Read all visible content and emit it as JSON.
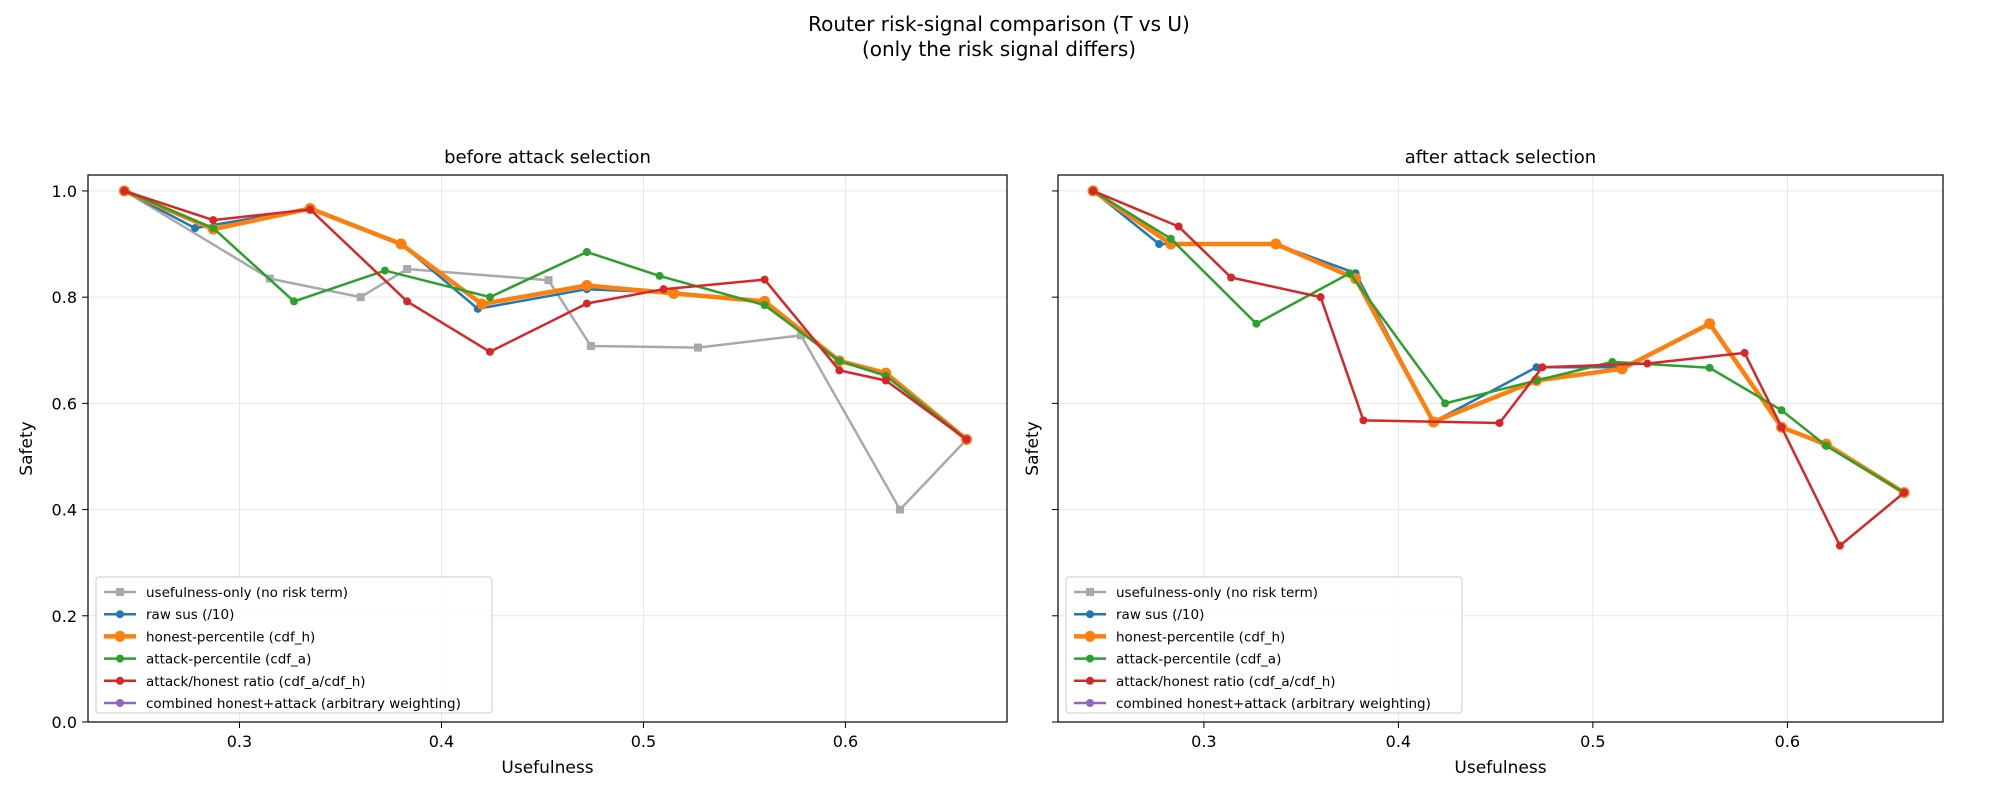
{
  "figure": {
    "title_line1": "Router risk-signal comparison (T vs U)",
    "title_line2": "(only the risk signal differs)"
  },
  "colors": {
    "usefulness_only": "#a9a9a9",
    "raw_sus": "#1f77b4",
    "honest_percentile": "#ff7f0e",
    "attack_percentile": "#2ca02c",
    "attack_honest_ratio": "#d62728",
    "combined": "#9467bd",
    "grid": "#e6e6e6"
  },
  "chart_data": [
    {
      "type": "line",
      "title": "before attack selection",
      "xlabel": "Usefulness",
      "ylabel": "Safety",
      "xlim": [
        0.225,
        0.68
      ],
      "ylim": [
        0.0,
        1.03
      ],
      "xticks": [
        "0.3",
        "0.4",
        "0.5",
        "0.6"
      ],
      "xtick_values": [
        0.3,
        0.4,
        0.5,
        0.6
      ],
      "yticks": [
        "0.0",
        "0.2",
        "0.4",
        "0.6",
        "0.8",
        "1.0"
      ],
      "ytick_values": [
        0.0,
        0.2,
        0.4,
        0.6,
        0.8,
        1.0
      ],
      "grid": true,
      "legend": "lower-left",
      "series": [
        {
          "name": "usefulness-only (no risk term)",
          "key": "usefulness_only",
          "marker": "square",
          "x": [
            0.243,
            0.315,
            0.36,
            0.383,
            0.453,
            0.474,
            0.527,
            0.578,
            0.627,
            0.66
          ],
          "y": [
            1.0,
            0.835,
            0.8,
            0.853,
            0.832,
            0.708,
            0.705,
            0.728,
            0.4,
            0.532
          ]
        },
        {
          "name": "raw sus (/10)",
          "key": "raw_sus",
          "marker": "circle",
          "x": [
            0.243,
            0.278,
            0.335,
            0.38,
            0.418,
            0.472,
            0.515,
            0.56,
            0.597,
            0.62,
            0.66
          ],
          "y": [
            1.0,
            0.93,
            0.967,
            0.9,
            0.778,
            0.815,
            0.808,
            0.79,
            0.68,
            0.652,
            0.532
          ]
        },
        {
          "name": "honest-percentile (cdf_h)",
          "key": "honest_percentile",
          "marker": "circle",
          "x": [
            0.243,
            0.287,
            0.335,
            0.38,
            0.42,
            0.472,
            0.515,
            0.56,
            0.597,
            0.62,
            0.66
          ],
          "y": [
            1.0,
            0.928,
            0.967,
            0.9,
            0.787,
            0.822,
            0.807,
            0.792,
            0.68,
            0.657,
            0.532
          ]
        },
        {
          "name": "attack-percentile (cdf_a)",
          "key": "attack_percentile",
          "marker": "circle",
          "x": [
            0.243,
            0.287,
            0.327,
            0.372,
            0.424,
            0.472,
            0.508,
            0.56,
            0.597,
            0.62,
            0.66
          ],
          "y": [
            1.0,
            0.93,
            0.792,
            0.85,
            0.8,
            0.885,
            0.84,
            0.785,
            0.68,
            0.652,
            0.532
          ]
        },
        {
          "name": "attack/honest ratio (cdf_a/cdf_h)",
          "key": "attack_honest_ratio",
          "marker": "circle",
          "x": [
            0.243,
            0.287,
            0.335,
            0.383,
            0.424,
            0.472,
            0.51,
            0.56,
            0.597,
            0.62,
            0.66
          ],
          "y": [
            1.0,
            0.945,
            0.965,
            0.792,
            0.697,
            0.788,
            0.815,
            0.833,
            0.662,
            0.643,
            0.532
          ]
        },
        {
          "name": "combined honest+attack (arbitrary weighting)",
          "key": "combined",
          "marker": "circle",
          "x": [],
          "y": []
        }
      ]
    },
    {
      "type": "line",
      "title": "after attack selection",
      "xlabel": "Usefulness",
      "ylabel": "Safety",
      "xlim": [
        0.225,
        0.68
      ],
      "ylim": [
        0.0,
        1.03
      ],
      "xticks": [
        "0.3",
        "0.4",
        "0.5",
        "0.6"
      ],
      "xtick_values": [
        0.3,
        0.4,
        0.5,
        0.6
      ],
      "yticks": [
        "0.0",
        "0.2",
        "0.4",
        "0.6",
        "0.8",
        "1.0"
      ],
      "ytick_values": [
        0.0,
        0.2,
        0.4,
        0.6,
        0.8,
        1.0
      ],
      "grid": true,
      "legend": "lower-left",
      "series": [
        {
          "name": "usefulness-only (no risk term)",
          "key": "usefulness_only",
          "marker": "square",
          "x": [],
          "y": []
        },
        {
          "name": "raw sus (/10)",
          "key": "raw_sus",
          "marker": "circle",
          "x": [
            0.243,
            0.277,
            0.337,
            0.378,
            0.418,
            0.471,
            0.515,
            0.56,
            0.597,
            0.62,
            0.66
          ],
          "y": [
            1.0,
            0.9,
            0.9,
            0.845,
            0.565,
            0.668,
            0.668,
            0.748,
            0.555,
            0.52,
            0.432
          ]
        },
        {
          "name": "honest-percentile (cdf_h)",
          "key": "honest_percentile",
          "marker": "circle",
          "x": [
            0.243,
            0.283,
            0.337,
            0.378,
            0.418,
            0.471,
            0.515,
            0.56,
            0.597,
            0.62,
            0.66
          ],
          "y": [
            1.0,
            0.9,
            0.9,
            0.835,
            0.565,
            0.643,
            0.665,
            0.75,
            0.555,
            0.523,
            0.432
          ]
        },
        {
          "name": "attack-percentile (cdf_a)",
          "key": "attack_percentile",
          "marker": "circle",
          "x": [
            0.243,
            0.283,
            0.327,
            0.375,
            0.424,
            0.471,
            0.51,
            0.56,
            0.597,
            0.62,
            0.66
          ],
          "y": [
            1.0,
            0.91,
            0.75,
            0.845,
            0.6,
            0.643,
            0.678,
            0.667,
            0.587,
            0.52,
            0.432
          ]
        },
        {
          "name": "attack/honest ratio (cdf_a/cdf_h)",
          "key": "attack_honest_ratio",
          "marker": "circle",
          "x": [
            0.243,
            0.287,
            0.314,
            0.36,
            0.382,
            0.452,
            0.474,
            0.528,
            0.578,
            0.597,
            0.627,
            0.66
          ],
          "y": [
            1.0,
            0.933,
            0.837,
            0.8,
            0.568,
            0.563,
            0.668,
            0.675,
            0.695,
            0.555,
            0.332,
            0.432
          ]
        },
        {
          "name": "combined honest+attack (arbitrary weighting)",
          "key": "combined",
          "marker": "circle",
          "x": [],
          "y": []
        }
      ]
    }
  ]
}
